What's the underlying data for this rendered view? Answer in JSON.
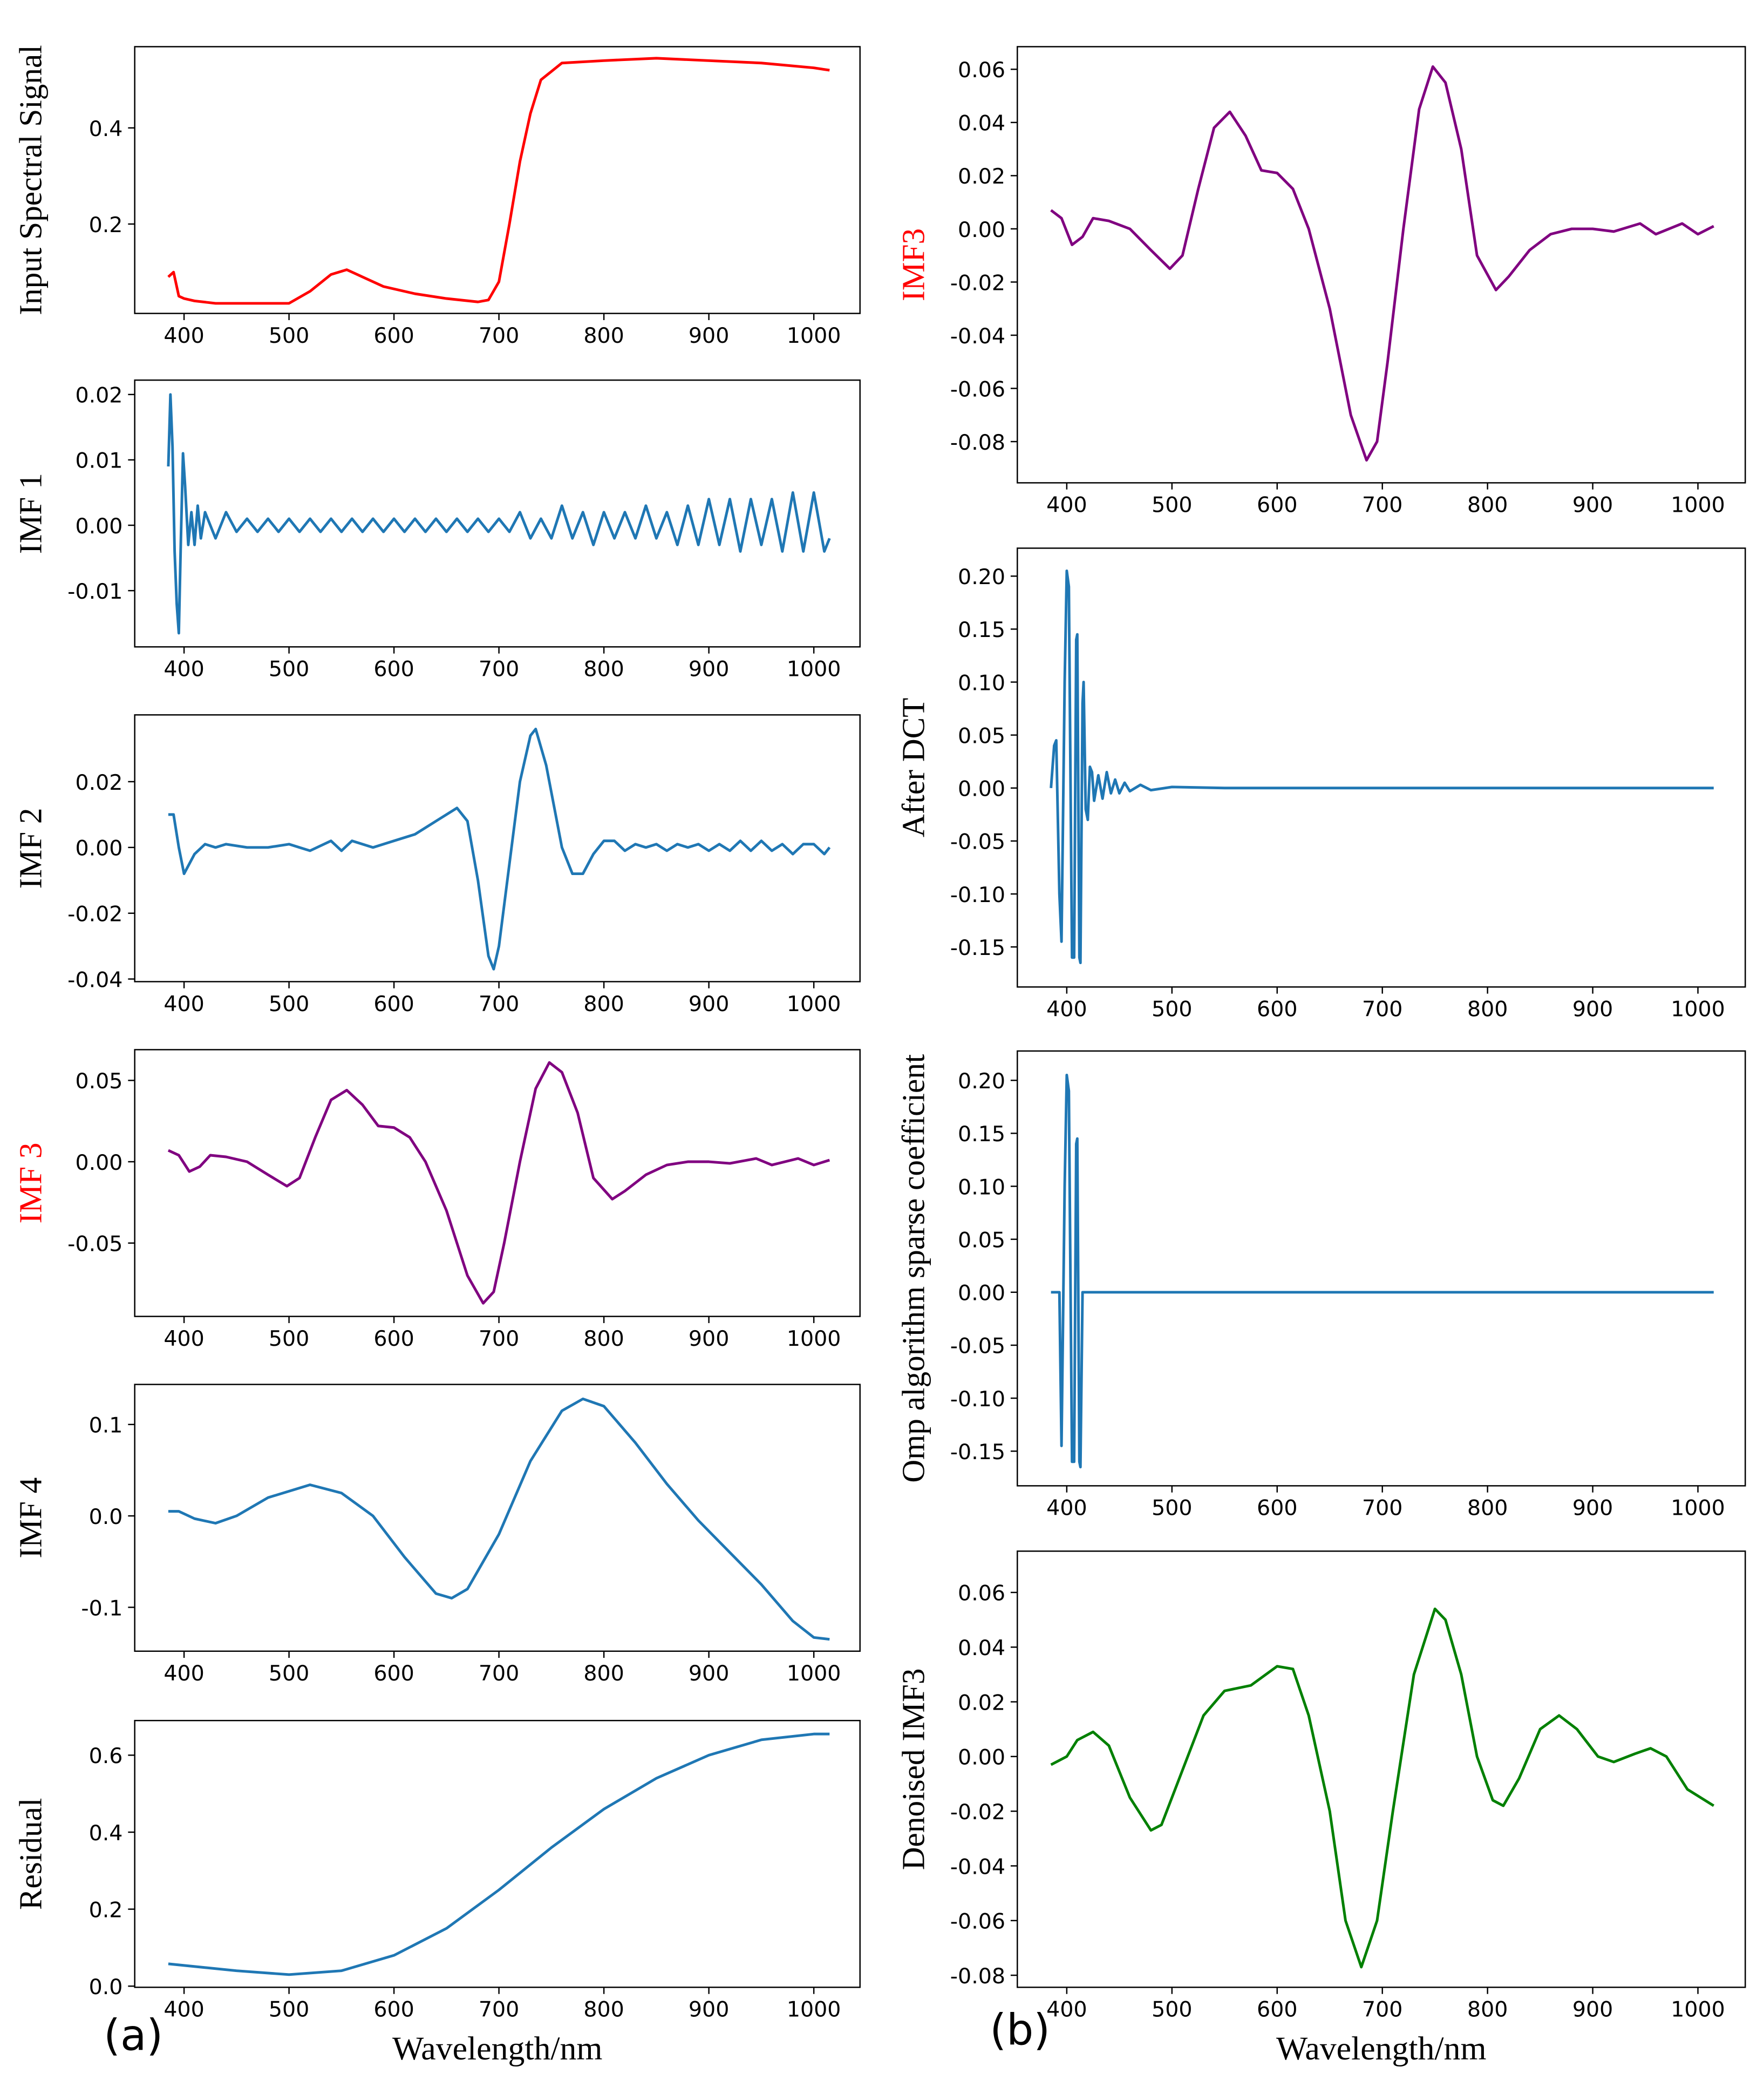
{
  "panel_labels": [
    "(a)",
    "(b)"
  ],
  "chart_data": [
    {
      "type": "line",
      "ylabel": "Input Spectral Signal",
      "color": "#ff0000",
      "xlim": [
        353,
        1044
      ],
      "xticks": [
        400,
        500,
        600,
        700,
        800,
        900,
        1000
      ],
      "ylim": [
        0.014,
        0.569
      ],
      "yticks": [
        0.2,
        0.4
      ],
      "x": [
        385,
        390,
        395,
        400,
        410,
        430,
        450,
        500,
        520,
        540,
        555,
        570,
        590,
        620,
        650,
        680,
        690,
        700,
        710,
        720,
        730,
        740,
        760,
        800,
        850,
        900,
        950,
        1000,
        1015
      ],
      "values": [
        0.09,
        0.1,
        0.05,
        0.045,
        0.04,
        0.035,
        0.035,
        0.035,
        0.06,
        0.095,
        0.105,
        0.09,
        0.07,
        0.055,
        0.045,
        0.038,
        0.042,
        0.08,
        0.2,
        0.33,
        0.43,
        0.5,
        0.535,
        0.54,
        0.545,
        0.54,
        0.535,
        0.525,
        0.52
      ]
    },
    {
      "type": "line",
      "ylabel": "IMF 1",
      "color": "#1f77b4",
      "xlim": [
        353,
        1044
      ],
      "xticks": [
        400,
        500,
        600,
        700,
        800,
        900,
        1000
      ],
      "ylim": [
        -0.0186,
        0.0222
      ],
      "yticks": [
        0.02,
        0.01,
        {
          "value": 0,
          "label": "0.00"
        },
        -0.01
      ],
      "x": [
        385,
        387,
        389,
        391,
        393,
        395,
        397,
        399,
        401,
        404,
        407,
        410,
        413,
        416,
        420,
        430,
        440,
        450,
        460,
        470,
        480,
        490,
        500,
        510,
        520,
        530,
        540,
        550,
        560,
        570,
        580,
        590,
        600,
        610,
        620,
        630,
        640,
        650,
        660,
        670,
        680,
        690,
        700,
        710,
        720,
        730,
        740,
        750,
        760,
        770,
        780,
        790,
        800,
        810,
        820,
        830,
        840,
        850,
        860,
        870,
        880,
        890,
        900,
        910,
        920,
        930,
        940,
        950,
        960,
        970,
        980,
        990,
        1000,
        1010,
        1015
      ],
      "values": [
        0.009,
        0.02,
        0.012,
        -0.004,
        -0.012,
        -0.0165,
        -0.002,
        0.011,
        0.006,
        -0.003,
        0.002,
        -0.003,
        0.003,
        -0.002,
        0.002,
        -0.002,
        0.002,
        -0.001,
        0.001,
        -0.001,
        0.001,
        -0.001,
        0.001,
        -0.001,
        0.001,
        -0.001,
        0.001,
        -0.001,
        0.001,
        -0.001,
        0.001,
        -0.001,
        0.001,
        -0.001,
        0.001,
        -0.001,
        0.001,
        -0.001,
        0.001,
        -0.001,
        0.001,
        -0.001,
        0.001,
        -0.001,
        0.002,
        -0.002,
        0.001,
        -0.002,
        0.003,
        -0.002,
        0.002,
        -0.003,
        0.002,
        -0.002,
        0.002,
        -0.002,
        0.003,
        -0.002,
        0.002,
        -0.003,
        0.003,
        -0.003,
        0.004,
        -0.003,
        0.004,
        -0.004,
        0.004,
        -0.003,
        0.004,
        -0.004,
        0.005,
        -0.004,
        0.005,
        -0.004,
        -0.002
      ]
    },
    {
      "type": "line",
      "ylabel": "IMF 2",
      "color": "#1f77b4",
      "xlim": [
        353,
        1044
      ],
      "xticks": [
        400,
        500,
        600,
        700,
        800,
        900,
        1000
      ],
      "ylim": [
        -0.0408,
        0.0403
      ],
      "yticks": [
        0.02,
        {
          "value": 0,
          "label": "0.00"
        },
        -0.02,
        -0.04
      ],
      "x": [
        385,
        390,
        395,
        400,
        410,
        420,
        430,
        440,
        460,
        480,
        500,
        510,
        520,
        540,
        550,
        560,
        580,
        600,
        620,
        640,
        660,
        670,
        680,
        690,
        695,
        700,
        710,
        720,
        730,
        735,
        745,
        760,
        770,
        780,
        790,
        800,
        810,
        820,
        830,
        840,
        850,
        860,
        870,
        880,
        890,
        900,
        910,
        920,
        930,
        940,
        950,
        960,
        970,
        980,
        990,
        1000,
        1010,
        1015
      ],
      "values": [
        0.01,
        0.01,
        0,
        -0.008,
        -0.002,
        0.001,
        0,
        0.001,
        0,
        0,
        0.001,
        0,
        -0.001,
        0.002,
        -0.001,
        0.002,
        0,
        0.002,
        0.004,
        0.008,
        0.012,
        0.008,
        -0.01,
        -0.033,
        -0.037,
        -0.03,
        -0.005,
        0.02,
        0.034,
        0.036,
        0.025,
        0,
        -0.008,
        -0.008,
        -0.002,
        0.002,
        0.002,
        -0.001,
        0.001,
        0,
        0.001,
        -0.001,
        0.001,
        0,
        0.001,
        -0.001,
        0.001,
        -0.001,
        0.002,
        -0.001,
        0.002,
        -0.001,
        0.001,
        -0.002,
        0.001,
        0.001,
        -0.002,
        0
      ]
    },
    {
      "type": "line",
      "ylabel": "IMF 3",
      "ylabel_color": "#ff0000",
      "color": "#800080",
      "xlim": [
        353,
        1044
      ],
      "xticks": [
        400,
        500,
        600,
        700,
        800,
        900,
        1000
      ],
      "ylim": [
        -0.0951,
        0.0689
      ],
      "yticks": [
        0.05,
        {
          "value": 0,
          "label": "0.00"
        },
        -0.05
      ],
      "x": [
        385,
        395,
        405,
        415,
        425,
        440,
        460,
        480,
        498,
        510,
        525,
        540,
        555,
        570,
        585,
        600,
        615,
        630,
        650,
        670,
        685,
        695,
        705,
        720,
        735,
        748,
        760,
        775,
        790,
        808,
        820,
        840,
        860,
        880,
        900,
        920,
        945,
        960,
        985,
        1000,
        1015
      ],
      "values": [
        0.007,
        0.004,
        -0.006,
        -0.003,
        0.004,
        0.003,
        0,
        -0.008,
        -0.015,
        -0.01,
        0.015,
        0.038,
        0.044,
        0.035,
        0.022,
        0.021,
        0.015,
        0,
        -0.03,
        -0.07,
        -0.087,
        -0.08,
        -0.05,
        0,
        0.045,
        0.061,
        0.055,
        0.03,
        -0.01,
        -0.023,
        -0.018,
        -0.008,
        -0.002,
        0,
        0,
        -0.001,
        0.002,
        -0.002,
        0.002,
        -0.002,
        0.001
      ]
    },
    {
      "type": "line",
      "ylabel": "IMF 4",
      "color": "#1f77b4",
      "xlim": [
        353,
        1044
      ],
      "xticks": [
        400,
        500,
        600,
        700,
        800,
        900,
        1000
      ],
      "ylim": [
        -0.148,
        0.1438
      ],
      "yticks": [
        0.1,
        {
          "value": 0,
          "label": "0.0"
        },
        -0.1
      ],
      "x": [
        385,
        395,
        410,
        430,
        450,
        480,
        520,
        550,
        580,
        610,
        640,
        655,
        670,
        700,
        730,
        760,
        780,
        800,
        830,
        860,
        890,
        920,
        950,
        980,
        1000,
        1015
      ],
      "values": [
        0.005,
        0.005,
        -0.003,
        -0.008,
        0,
        0.02,
        0.034,
        0.025,
        0,
        -0.045,
        -0.085,
        -0.09,
        -0.08,
        -0.02,
        0.06,
        0.115,
        0.128,
        0.12,
        0.08,
        0.035,
        -0.005,
        -0.04,
        -0.075,
        -0.115,
        -0.133,
        -0.135
      ]
    },
    {
      "type": "line",
      "ylabel": "Residual",
      "xlabel": "Wavelength/nm",
      "color": "#1f77b4",
      "xlim": [
        353,
        1044
      ],
      "xticks": [
        400,
        500,
        600,
        700,
        800,
        900,
        1000
      ],
      "ylim": [
        -0.003,
        0.69
      ],
      "yticks": [
        {
          "value": 0,
          "label": "0.0"
        },
        0.2,
        0.4,
        0.6
      ],
      "x": [
        385,
        450,
        500,
        550,
        600,
        650,
        700,
        750,
        800,
        850,
        900,
        950,
        1000,
        1015
      ],
      "values": [
        0.058,
        0.04,
        0.03,
        0.04,
        0.08,
        0.15,
        0.25,
        0.36,
        0.46,
        0.54,
        0.6,
        0.64,
        0.655,
        0.655
      ]
    },
    {
      "type": "line",
      "ylabel": "IMF3",
      "ylabel_color": "#ff0000",
      "color": "#800080",
      "xlim": [
        353,
        1045
      ],
      "xticks": [
        400,
        500,
        600,
        700,
        800,
        900,
        1000
      ],
      "ylim": [
        -0.0955,
        0.0685
      ],
      "yticks": [
        0.06,
        0.04,
        0.02,
        {
          "value": 0,
          "label": "0.00"
        },
        -0.02,
        -0.04,
        -0.06,
        -0.08
      ],
      "x": [
        385,
        395,
        405,
        415,
        425,
        440,
        460,
        480,
        498,
        510,
        525,
        540,
        555,
        570,
        585,
        600,
        615,
        630,
        650,
        670,
        685,
        695,
        705,
        720,
        735,
        748,
        760,
        775,
        790,
        808,
        820,
        840,
        860,
        880,
        900,
        920,
        945,
        960,
        985,
        1000,
        1015
      ],
      "values": [
        0.007,
        0.004,
        -0.006,
        -0.003,
        0.004,
        0.003,
        0,
        -0.008,
        -0.015,
        -0.01,
        0.015,
        0.038,
        0.044,
        0.035,
        0.022,
        0.021,
        0.015,
        0,
        -0.03,
        -0.07,
        -0.087,
        -0.08,
        -0.05,
        0,
        0.045,
        0.061,
        0.055,
        0.03,
        -0.01,
        -0.023,
        -0.018,
        -0.008,
        -0.002,
        0,
        0,
        -0.001,
        0.002,
        -0.002,
        0.002,
        -0.002,
        0.001
      ]
    },
    {
      "type": "line",
      "ylabel": "After DCT",
      "color": "#1f77b4",
      "xlim": [
        353,
        1045
      ],
      "xticks": [
        400,
        500,
        600,
        700,
        800,
        900,
        1000
      ],
      "ylim": [
        -0.1878,
        0.2264
      ],
      "yticks": [
        {
          "value": 0.2,
          "label": "0.20"
        },
        0.15,
        {
          "value": 0.1,
          "label": "0.10"
        },
        0.05,
        {
          "value": 0,
          "label": "0.00"
        },
        -0.05,
        {
          "value": -0.1,
          "label": "-0.10"
        },
        -0.15
      ],
      "x": [
        385,
        388,
        390,
        393,
        395,
        398,
        400,
        402,
        405,
        407,
        409,
        410,
        412,
        413,
        415,
        416,
        418,
        420,
        422,
        424,
        426,
        430,
        434,
        438,
        442,
        446,
        450,
        455,
        460,
        470,
        480,
        500,
        550,
        1015
      ],
      "values": [
        0,
        0.04,
        0.045,
        -0.1,
        -0.145,
        0.1,
        0.205,
        0.19,
        -0.16,
        -0.16,
        0.14,
        0.145,
        -0.16,
        -0.165,
        0.08,
        0.1,
        -0.02,
        -0.03,
        0.02,
        0.015,
        -0.012,
        0.012,
        -0.01,
        0.015,
        -0.005,
        0.008,
        -0.005,
        0.005,
        -0.003,
        0.003,
        -0.002,
        0.001,
        0,
        0
      ]
    },
    {
      "type": "line",
      "ylabel": "Omp algorithm sparse coefficient",
      "color": "#1f77b4",
      "xlim": [
        353,
        1045
      ],
      "xticks": [
        400,
        500,
        600,
        700,
        800,
        900,
        1000
      ],
      "ylim": [
        -0.1827,
        0.2277
      ],
      "yticks": [
        {
          "value": 0.2,
          "label": "0.20"
        },
        0.15,
        {
          "value": 0.1,
          "label": "0.10"
        },
        0.05,
        {
          "value": 0,
          "label": "0.00"
        },
        -0.05,
        {
          "value": -0.1,
          "label": "-0.10"
        },
        -0.15
      ],
      "x": [
        385,
        393,
        395,
        398,
        400,
        402,
        405,
        407,
        409,
        410,
        412,
        413,
        415,
        1015
      ],
      "values": [
        0,
        0,
        -0.145,
        0.1,
        0.205,
        0.19,
        -0.16,
        -0.16,
        0.14,
        0.145,
        -0.16,
        -0.165,
        0,
        0
      ]
    },
    {
      "type": "line",
      "ylabel": "Denoised IMF3",
      "xlabel": "Wavelength/nm",
      "color": "#008000",
      "xlim": [
        353,
        1045
      ],
      "xticks": [
        400,
        500,
        600,
        700,
        800,
        900,
        1000
      ],
      "ylim": [
        -0.0844,
        0.0751
      ],
      "yticks": [
        0.06,
        0.04,
        0.02,
        {
          "value": 0,
          "label": "0.00"
        },
        -0.02,
        -0.04,
        -0.06,
        -0.08
      ],
      "x": [
        385,
        400,
        410,
        425,
        440,
        460,
        480,
        490,
        510,
        530,
        550,
        575,
        600,
        615,
        630,
        650,
        665,
        680,
        695,
        710,
        730,
        750,
        760,
        775,
        790,
        805,
        815,
        830,
        850,
        868,
        885,
        905,
        920,
        940,
        955,
        970,
        990,
        1015
      ],
      "values": [
        -0.003,
        0,
        0.006,
        0.009,
        0.004,
        -0.015,
        -0.027,
        -0.025,
        -0.005,
        0.015,
        0.024,
        0.026,
        0.033,
        0.032,
        0.015,
        -0.02,
        -0.06,
        -0.077,
        -0.06,
        -0.02,
        0.03,
        0.054,
        0.05,
        0.03,
        0,
        -0.016,
        -0.018,
        -0.008,
        0.01,
        0.015,
        0.01,
        0,
        -0.002,
        0.001,
        0.003,
        0,
        -0.012,
        -0.018
      ]
    }
  ]
}
